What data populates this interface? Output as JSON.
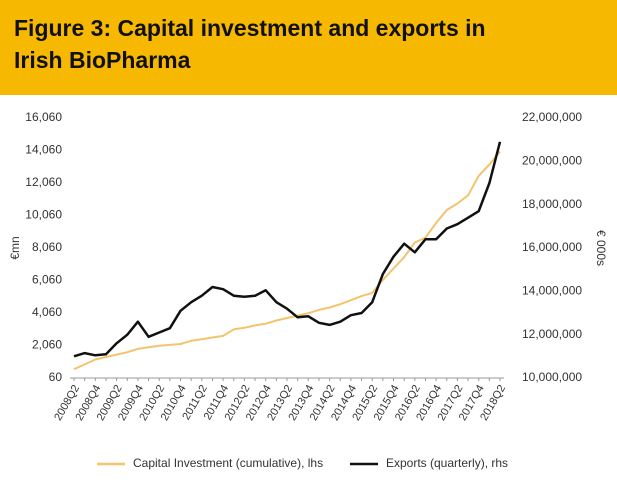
{
  "chart_data": {
    "type": "line",
    "title_lines": [
      "Figure 3: Capital investment and exports in",
      "Irish BioPharma"
    ],
    "y_label": "€mn",
    "y2_label": "€ 000s",
    "categories": [
      "2008Q2",
      null,
      "2008Q4",
      null,
      "2009Q2",
      null,
      "2009Q4",
      null,
      "2010Q2",
      null,
      "2010Q4",
      null,
      "2011Q2",
      null,
      "2011Q4",
      null,
      "2012Q2",
      null,
      "2012Q4",
      null,
      "2013Q2",
      null,
      "2013Q4",
      null,
      "2014Q2",
      null,
      "2014Q4",
      null,
      "2015Q2",
      null,
      "2015Q4",
      null,
      "2016Q2",
      null,
      "2016Q4",
      null,
      "2017Q2",
      null,
      "2017Q4",
      null,
      "2018Q2"
    ],
    "series": [
      {
        "name": "Capital Investment (cumulative), lhs",
        "color": "#f2c46d",
        "values": [
          600,
          900,
          1200,
          1350,
          1500,
          1650,
          1850,
          1950,
          2050,
          2100,
          2150,
          2350,
          2450,
          2550,
          2650,
          3050,
          3150,
          3300,
          3400,
          3600,
          3750,
          3900,
          4050,
          4250,
          4400,
          4600,
          4850,
          5100,
          5300,
          6100,
          6800,
          7500,
          8400,
          8700,
          9600,
          10400,
          10800,
          11300,
          12500,
          13200,
          14000
        ]
      },
      {
        "name": "Exports (quarterly), rhs",
        "color": "#111111",
        "axis": "y2",
        "values": [
          11000000,
          11150000,
          11050000,
          11100000,
          11600000,
          12000000,
          12600000,
          11900000,
          12100000,
          12300000,
          13100000,
          13500000,
          13800000,
          14200000,
          14100000,
          13800000,
          13750000,
          13800000,
          14050000,
          13500000,
          13200000,
          12800000,
          12850000,
          12550000,
          12450000,
          12600000,
          12900000,
          13000000,
          13500000,
          14800000,
          15600000,
          16200000,
          15800000,
          16400000,
          16400000,
          16900000,
          17100000,
          17400000,
          17700000,
          19000000,
          20900000
        ]
      }
    ],
    "ylim": [
      60,
      16060
    ],
    "yticks": [
      60,
      {
        "value": 2060,
        "label": "2,060"
      },
      {
        "value": 4060,
        "label": "4,060"
      },
      {
        "value": 6060,
        "label": "6,060"
      },
      {
        "value": 8060,
        "label": "8,060"
      },
      {
        "value": 10060,
        "label": "10,060"
      },
      {
        "value": 12060,
        "label": "12,060"
      },
      {
        "value": 14060,
        "label": "14,060"
      },
      {
        "value": 16060,
        "label": "16,060"
      }
    ],
    "y2lim": [
      10000000,
      22000000
    ],
    "y2ticks": [
      {
        "value": 10000000,
        "label": "10,000,000"
      },
      {
        "value": 12000000,
        "label": "12,000,000"
      },
      {
        "value": 14000000,
        "label": "14,000,000"
      },
      {
        "value": 16000000,
        "label": "16,000,000"
      },
      {
        "value": 18000000,
        "label": "18,000,000"
      },
      {
        "value": 20000000,
        "label": "20,000,000"
      },
      {
        "value": 22000000,
        "label": "22,000,000"
      }
    ],
    "grid": false
  }
}
